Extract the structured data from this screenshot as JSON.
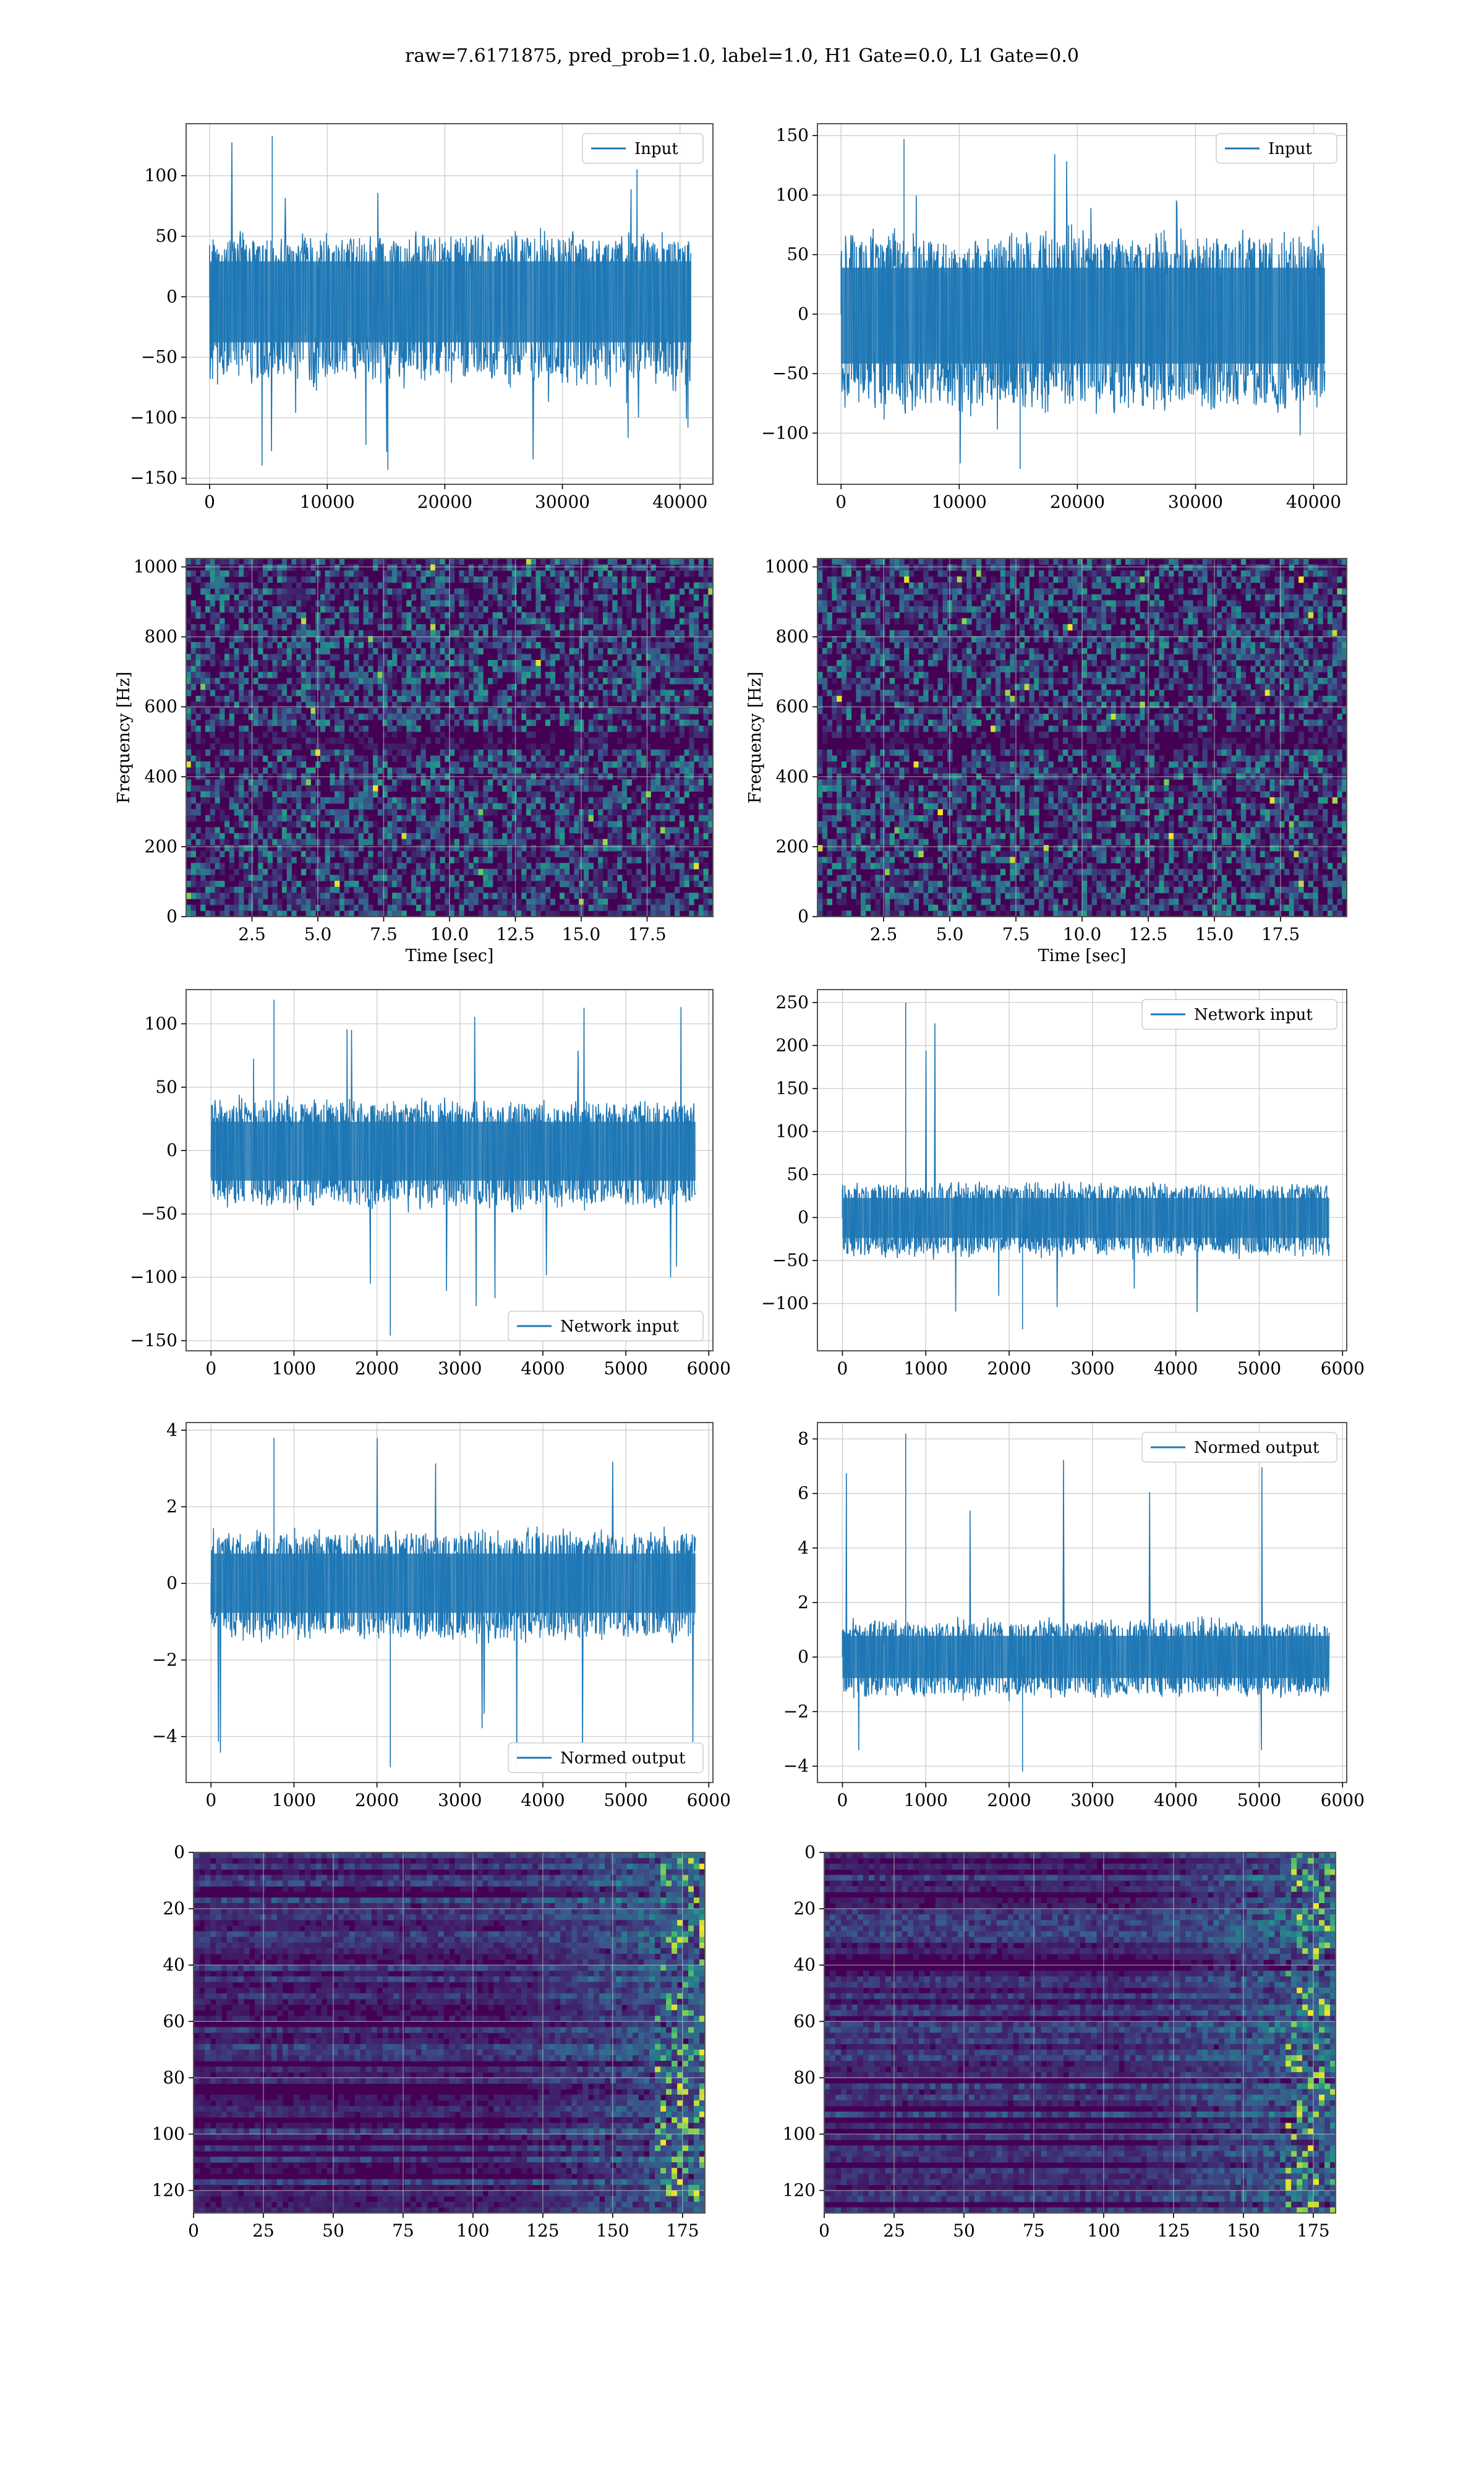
{
  "figure": {
    "title": "raw=7.6171875, pred_prob=1.0, label=1.0, H1 Gate=0.0, L1 Gate=0.0",
    "colors": {
      "line": "#1f77b4",
      "grid": "#d0d0d0",
      "frame": "#555555",
      "viridis_dark": "#440154"
    }
  },
  "chart_data": [
    {
      "type": "line",
      "legend": "Input",
      "legend_loc": "upper right",
      "grid": true,
      "xlim": [
        -2000,
        42800
      ],
      "ylim": [
        -155,
        143
      ],
      "xticks": [
        0,
        10000,
        20000,
        30000,
        40000
      ],
      "xtick_labels": [
        "0",
        "10000",
        "20000",
        "30000",
        "40000"
      ],
      "yticks": [
        -150,
        -100,
        -50,
        0,
        50,
        100
      ],
      "ytick_labels": [
        "−150",
        "−100",
        "−50",
        "0",
        "50",
        "100"
      ],
      "signal": {
        "x_start": 0,
        "x_end": 40960,
        "center": 0,
        "band_max": 45,
        "band_min": -63,
        "spike_max": 133,
        "spike_min": -143
      }
    },
    {
      "type": "line",
      "legend": "Input",
      "legend_loc": "upper right",
      "grid": true,
      "xlim": [
        -2000,
        42800
      ],
      "ylim": [
        -143,
        160
      ],
      "xticks": [
        0,
        10000,
        20000,
        30000,
        40000
      ],
      "xtick_labels": [
        "0",
        "10000",
        "20000",
        "30000",
        "40000"
      ],
      "yticks": [
        -100,
        -50,
        0,
        50,
        100,
        150
      ],
      "ytick_labels": [
        "−100",
        "−50",
        "0",
        "50",
        "100",
        "150"
      ],
      "signal": {
        "x_start": 0,
        "x_end": 40960,
        "center": 0,
        "band_max": 60,
        "band_min": -70,
        "spike_max": 147,
        "spike_min": -130
      }
    },
    {
      "type": "heatmap",
      "grid": true,
      "colormap": "viridis",
      "xlim": [
        0,
        20
      ],
      "ylim": [
        0,
        1024
      ],
      "xticks": [
        2.5,
        5,
        7.5,
        10,
        12.5,
        15,
        17.5
      ],
      "xtick_labels": [
        "2.5",
        "5.0",
        "7.5",
        "10.0",
        "12.5",
        "15.0",
        "17.5"
      ],
      "yticks": [
        0,
        200,
        400,
        600,
        800,
        1000
      ],
      "ytick_labels": [
        "0",
        "200",
        "400",
        "600",
        "800",
        "1000"
      ],
      "xlabel": "Time [sec]",
      "ylabel": "Frequency [Hz]"
    },
    {
      "type": "heatmap",
      "grid": true,
      "colormap": "viridis",
      "xlim": [
        0,
        20
      ],
      "ylim": [
        0,
        1024
      ],
      "xticks": [
        2.5,
        5,
        7.5,
        10,
        12.5,
        15,
        17.5
      ],
      "xtick_labels": [
        "2.5",
        "5.0",
        "7.5",
        "10.0",
        "12.5",
        "15.0",
        "17.5"
      ],
      "yticks": [
        0,
        200,
        400,
        600,
        800,
        1000
      ],
      "ytick_labels": [
        "0",
        "200",
        "400",
        "600",
        "800",
        "1000"
      ],
      "xlabel": "Time [sec]",
      "ylabel": "Frequency [Hz]"
    },
    {
      "type": "line",
      "legend": "Network input",
      "legend_loc": "lower right",
      "grid": true,
      "xlim": [
        -300,
        6050
      ],
      "ylim": [
        -158,
        127
      ],
      "xticks": [
        0,
        1000,
        2000,
        3000,
        4000,
        5000,
        6000
      ],
      "xtick_labels": [
        "0",
        "1000",
        "2000",
        "3000",
        "4000",
        "5000",
        "6000"
      ],
      "yticks": [
        -150,
        -100,
        -50,
        0,
        50,
        100
      ],
      "ytick_labels": [
        "−150",
        "−100",
        "−50",
        "0",
        "50",
        "100"
      ],
      "signal": {
        "x_start": 0,
        "x_end": 5840,
        "center": 0,
        "band_max": 35,
        "band_min": -40,
        "spike_max": 119,
        "spike_min": -146
      }
    },
    {
      "type": "line",
      "legend": "Network input",
      "legend_loc": "upper right",
      "grid": true,
      "xlim": [
        -300,
        6050
      ],
      "ylim": [
        -155,
        265
      ],
      "xticks": [
        0,
        1000,
        2000,
        3000,
        4000,
        5000,
        6000
      ],
      "xtick_labels": [
        "0",
        "1000",
        "2000",
        "3000",
        "4000",
        "5000",
        "6000"
      ],
      "yticks": [
        -100,
        -50,
        0,
        50,
        100,
        150,
        200,
        250
      ],
      "ytick_labels": [
        "−100",
        "−50",
        "0",
        "50",
        "100",
        "150",
        "200",
        "250"
      ],
      "signal": {
        "x_start": 0,
        "x_end": 5840,
        "center": 0,
        "band_max": 35,
        "band_min": -40,
        "spike_max": 250,
        "spike_min": -130
      }
    },
    {
      "type": "line",
      "legend": "Normed output",
      "legend_loc": "lower right",
      "grid": true,
      "xlim": [
        -300,
        6050
      ],
      "ylim": [
        -5.2,
        4.2
      ],
      "xticks": [
        0,
        1000,
        2000,
        3000,
        4000,
        5000,
        6000
      ],
      "xtick_labels": [
        "0",
        "1000",
        "2000",
        "3000",
        "4000",
        "5000",
        "6000"
      ],
      "yticks": [
        -4,
        -2,
        0,
        2,
        4
      ],
      "ytick_labels": [
        "−4",
        "−2",
        "0",
        "2",
        "4"
      ],
      "signal": {
        "x_start": 0,
        "x_end": 5840,
        "center": 0,
        "band_max": 1.2,
        "band_min": -1.3,
        "spike_max": 3.8,
        "spike_min": -4.8
      }
    },
    {
      "type": "line",
      "legend": "Normed output",
      "legend_loc": "upper right",
      "grid": true,
      "xlim": [
        -300,
        6050
      ],
      "ylim": [
        -4.6,
        8.6
      ],
      "xticks": [
        0,
        1000,
        2000,
        3000,
        4000,
        5000,
        6000
      ],
      "xtick_labels": [
        "0",
        "1000",
        "2000",
        "3000",
        "4000",
        "5000",
        "6000"
      ],
      "yticks": [
        -4,
        -2,
        0,
        2,
        4,
        6,
        8
      ],
      "ytick_labels": [
        "−4",
        "−2",
        "0",
        "2",
        "4",
        "6",
        "8"
      ],
      "signal": {
        "x_start": 0,
        "x_end": 5840,
        "center": 0,
        "band_max": 1.2,
        "band_min": -1.3,
        "spike_max": 8.2,
        "spike_min": -4.2
      }
    },
    {
      "type": "heatmap",
      "grid": true,
      "colormap": "viridis",
      "inverted_y": true,
      "xlim": [
        0,
        183
      ],
      "ylim": [
        0,
        128
      ],
      "xticks": [
        0,
        25,
        50,
        75,
        100,
        125,
        150,
        175
      ],
      "xtick_labels": [
        "0",
        "25",
        "50",
        "75",
        "100",
        "125",
        "150",
        "175"
      ],
      "yticks": [
        0,
        20,
        40,
        60,
        80,
        100,
        120
      ],
      "ytick_labels": [
        "0",
        "20",
        "40",
        "60",
        "80",
        "100",
        "120"
      ]
    },
    {
      "type": "heatmap",
      "grid": true,
      "colormap": "viridis",
      "inverted_y": true,
      "xlim": [
        0,
        183
      ],
      "ylim": [
        0,
        128
      ],
      "xticks": [
        0,
        25,
        50,
        75,
        100,
        125,
        150,
        175
      ],
      "xtick_labels": [
        "0",
        "25",
        "50",
        "75",
        "100",
        "125",
        "150",
        "175"
      ],
      "yticks": [
        0,
        20,
        40,
        60,
        80,
        100,
        120
      ],
      "ytick_labels": [
        "0",
        "20",
        "40",
        "60",
        "80",
        "100",
        "120"
      ]
    }
  ]
}
